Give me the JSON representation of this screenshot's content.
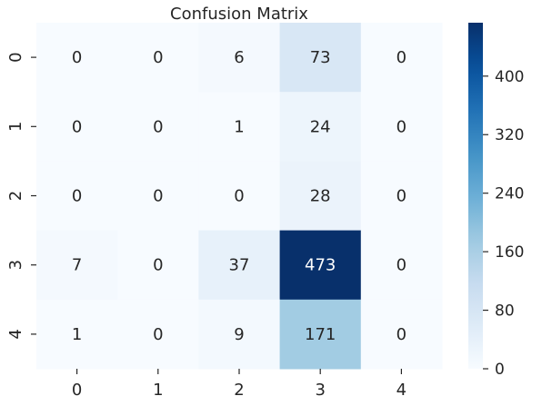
{
  "chart_data": {
    "type": "heatmap",
    "title": "Confusion Matrix",
    "x_tick_labels": [
      "0",
      "1",
      "2",
      "3",
      "4"
    ],
    "y_tick_labels": [
      "0",
      "1",
      "2",
      "3",
      "4"
    ],
    "matrix": [
      [
        0,
        0,
        6,
        73,
        0
      ],
      [
        0,
        0,
        1,
        24,
        0
      ],
      [
        0,
        0,
        0,
        28,
        0
      ],
      [
        7,
        0,
        37,
        473,
        0
      ],
      [
        1,
        0,
        9,
        171,
        0
      ]
    ],
    "colorscale": "Blues",
    "colorbar": {
      "range": [
        0,
        473
      ],
      "ticks": [
        0,
        80,
        160,
        240,
        320,
        400
      ]
    },
    "xlabel": "",
    "ylabel": ""
  }
}
